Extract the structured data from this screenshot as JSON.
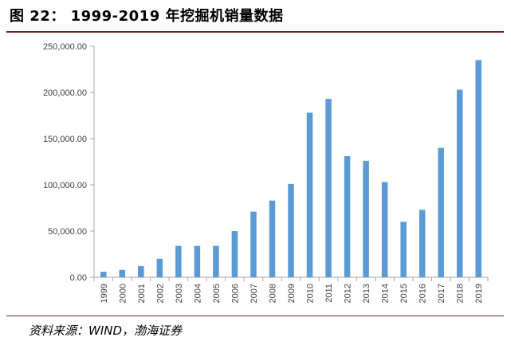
{
  "title": "图 22： 1999-2019 年挖掘机销量数据",
  "source": "资料来源：WIND，渤海证券",
  "colors": {
    "bar": "#5b9bd5",
    "axis": "#a6a6a6",
    "rule": "#7a1a1a"
  },
  "chart_data": {
    "type": "bar",
    "title": "1999-2019 年挖掘机销量数据",
    "xlabel": "",
    "ylabel": "",
    "ylim": [
      0,
      250000
    ],
    "grid": false,
    "y_ticks": [
      "0.00",
      "50,000.00",
      "100,000.00",
      "150,000.00",
      "200,000.00",
      "250,000.00"
    ],
    "categories": [
      "1999",
      "2000",
      "2001",
      "2002",
      "2003",
      "2004",
      "2005",
      "2006",
      "2007",
      "2008",
      "2009",
      "2010",
      "2011",
      "2012",
      "2013",
      "2014",
      "2015",
      "2016",
      "2017",
      "2018",
      "2019"
    ],
    "values": [
      6000,
      8000,
      12000,
      20000,
      34000,
      34000,
      34000,
      50000,
      71000,
      83000,
      101000,
      178000,
      193000,
      131000,
      126000,
      103000,
      60000,
      73000,
      140000,
      203000,
      235000
    ]
  }
}
